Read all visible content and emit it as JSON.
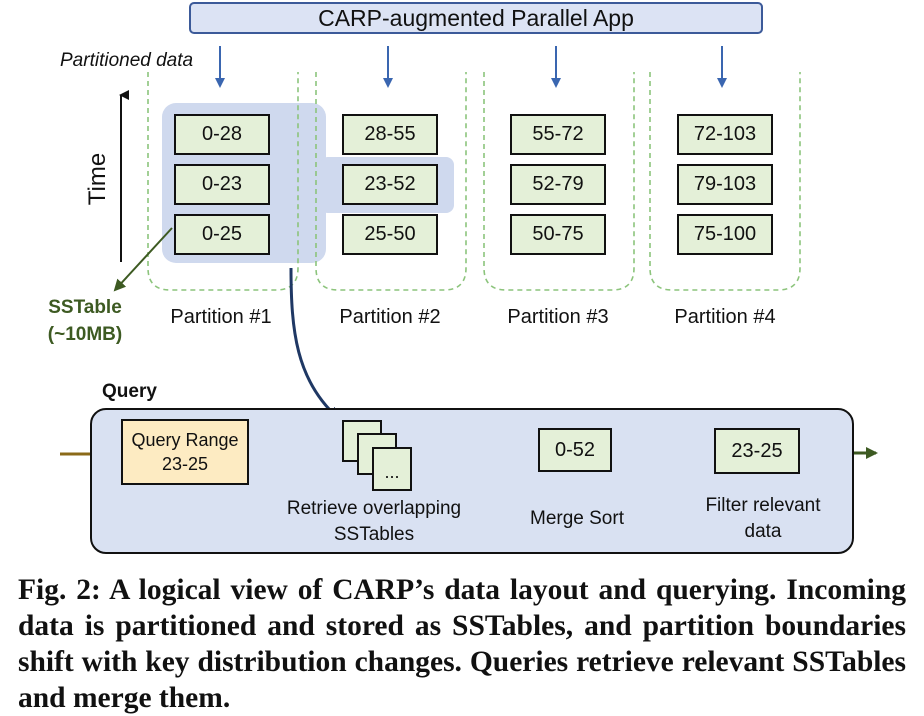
{
  "app_title": "CARP-augmented Parallel App",
  "partitioned_data_label": "Partitioned data",
  "time_axis_label": "Time",
  "partitions": [
    {
      "label": "Partition #1",
      "sstables": [
        "0-28",
        "0-23",
        "0-25"
      ]
    },
    {
      "label": "Partition #2",
      "sstables": [
        "28-55",
        "23-52",
        "25-50"
      ]
    },
    {
      "label": "Partition #3",
      "sstables": [
        "55-72",
        "52-79",
        "50-75"
      ]
    },
    {
      "label": "Partition #4",
      "sstables": [
        "72-103",
        "79-103",
        "75-100"
      ]
    }
  ],
  "sstable_label": {
    "line1": "SSTable",
    "line2": "(~10MB)"
  },
  "query": {
    "title": "Query",
    "range_box": {
      "line1": "Query Range",
      "line2": "23-25"
    },
    "stack_ellipsis": "...",
    "retrieve_label": {
      "line1": "Retrieve overlapping",
      "line2": "SSTables"
    },
    "merge_value": "0-52",
    "merge_label": "Merge Sort",
    "filter_value": "23-25",
    "filter_label": {
      "line1": "Filter relevant",
      "line2": "data"
    }
  },
  "caption": "Fig. 2: A logical view of CARP’s data layout and querying. Incoming data is partitioned and stored as SSTables, and partition boundaries shift with key distribution changes. Queries retrieve relevant SSTables and merge them.",
  "colors": {
    "app_fill": "#dce3f4",
    "app_border": "#3c5a99",
    "sstable_fill": "#e4f0d8",
    "highlight_fill": "#cfd9ee",
    "partition_border": "#8cc47c",
    "arrow_blue": "#3a66b0",
    "arrow_navy": "#1f3864",
    "arrow_green": "#3d5a22",
    "arrow_brown": "#8b6a18",
    "query_range_fill": "#fdebc2",
    "query_panel_fill": "#d9e1f2"
  }
}
